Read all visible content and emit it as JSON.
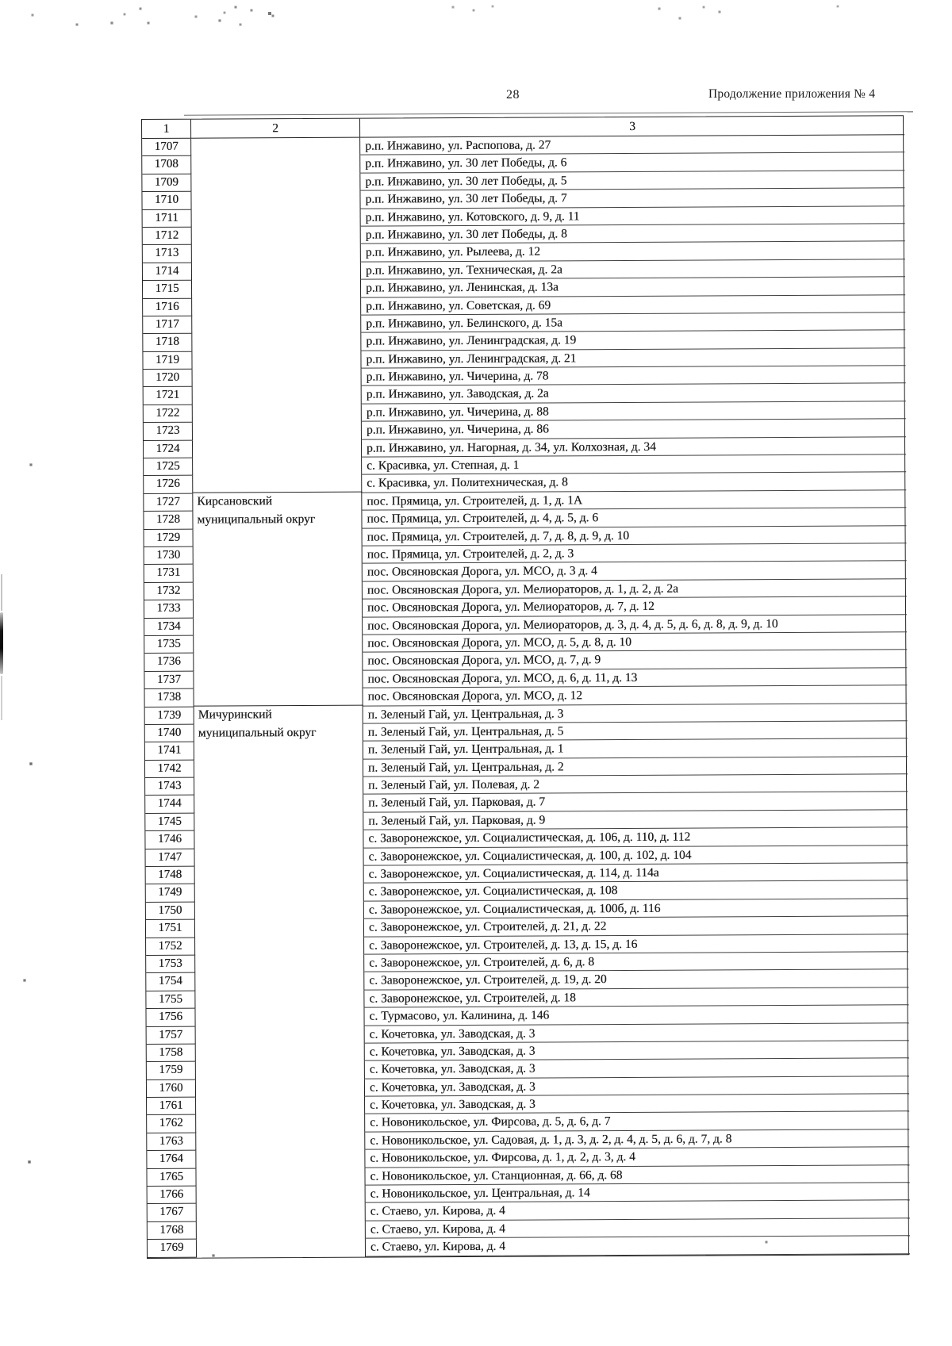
{
  "page": {
    "number": "28",
    "header_right": "Продолжение приложения № 4"
  },
  "table": {
    "columns": [
      "1",
      "2",
      "3"
    ],
    "rows": [
      {
        "num": "1707",
        "district": "",
        "address": "р.п. Инжавино, ул. Распопова, д. 27"
      },
      {
        "num": "1708",
        "district": "",
        "address": "р.п. Инжавино, ул. 30 лет Победы, д. 6"
      },
      {
        "num": "1709",
        "district": "",
        "address": "р.п. Инжавино, ул. 30 лет Победы, д. 5"
      },
      {
        "num": "1710",
        "district": "",
        "address": "р.п. Инжавино, ул. 30 лет Победы, д. 7"
      },
      {
        "num": "1711",
        "district": "",
        "address": "р.п. Инжавино, ул. Котовского, д. 9, д. 11"
      },
      {
        "num": "1712",
        "district": "",
        "address": "р.п. Инжавино, ул. 30 лет Победы, д. 8"
      },
      {
        "num": "1713",
        "district": "",
        "address": "р.п. Инжавино, ул. Рылеева, д. 12"
      },
      {
        "num": "1714",
        "district": "",
        "address": "р.п. Инжавино, ул. Техническая, д. 2а"
      },
      {
        "num": "1715",
        "district": "",
        "address": "р.п. Инжавино, ул. Ленинская, д. 13а"
      },
      {
        "num": "1716",
        "district": "",
        "address": "р.п. Инжавино, ул. Советская, д. 69"
      },
      {
        "num": "1717",
        "district": "",
        "address": "р.п. Инжавино, ул. Белинского, д. 15а"
      },
      {
        "num": "1718",
        "district": "",
        "address": "р.п. Инжавино, ул. Ленинградская, д. 19"
      },
      {
        "num": "1719",
        "district": "",
        "address": "р.п. Инжавино, ул. Ленинградская, д. 21"
      },
      {
        "num": "1720",
        "district": "",
        "address": "р.п. Инжавино, ул. Чичерина, д. 78"
      },
      {
        "num": "1721",
        "district": "",
        "address": "р.п. Инжавино, ул. Заводская, д. 2а"
      },
      {
        "num": "1722",
        "district": "",
        "address": "р.п. Инжавино, ул. Чичерина, д. 88"
      },
      {
        "num": "1723",
        "district": "",
        "address": "р.п. Инжавино, ул. Чичерина, д. 86"
      },
      {
        "num": "1724",
        "district": "",
        "address": "р.п. Инжавино, ул. Нагорная, д. 34, ул. Колхозная, д. 34"
      },
      {
        "num": "1725",
        "district": "",
        "address": "с. Красивка, ул. Степная, д. 1"
      },
      {
        "num": "1726",
        "district": "",
        "address": "с. Красивка, ул. Политехническая, д. 8"
      },
      {
        "num": "1727",
        "district": "Кирсановский",
        "address": "пос. Прямица, ул. Строителей, д. 1, д. 1А",
        "group_start": true
      },
      {
        "num": "1728",
        "district": "муниципальный округ",
        "address": "пос. Прямица, ул. Строителей, д. 4, д. 5, д. 6"
      },
      {
        "num": "1729",
        "district": "",
        "address": "пос. Прямица, ул. Строителей, д. 7, д. 8, д. 9, д. 10"
      },
      {
        "num": "1730",
        "district": "",
        "address": "пос. Прямица, ул. Строителей, д. 2, д. 3"
      },
      {
        "num": "1731",
        "district": "",
        "address": "пос. Овсяновская Дорога, ул. МСО, д. 3 д. 4"
      },
      {
        "num": "1732",
        "district": "",
        "address": "пос. Овсяновская Дорога, ул. Мелиораторов, д. 1, д. 2, д. 2а"
      },
      {
        "num": "1733",
        "district": "",
        "address": "пос. Овсяновская Дорога, ул. Мелиораторов, д. 7, д. 12"
      },
      {
        "num": "1734",
        "district": "",
        "address": "пос. Овсяновская Дорога, ул. Мелиораторов, д. 3, д. 4, д. 5, д. 6, д. 8, д. 9, д. 10"
      },
      {
        "num": "1735",
        "district": "",
        "address": "пос. Овсяновская Дорога, ул. МСО, д. 5, д. 8, д. 10"
      },
      {
        "num": "1736",
        "district": "",
        "address": "пос. Овсяновская Дорога, ул. МСО, д. 7, д. 9"
      },
      {
        "num": "1737",
        "district": "",
        "address": "пос. Овсяновская Дорога, ул. МСО, д. 6, д. 11, д. 13"
      },
      {
        "num": "1738",
        "district": "",
        "address": "пос. Овсяновская Дорога, ул. МСО, д. 12"
      },
      {
        "num": "1739",
        "district": "Мичуринский",
        "address": "п. Зеленый Гай, ул. Центральная, д. 3",
        "group_start": true
      },
      {
        "num": "1740",
        "district": "муниципальный округ",
        "address": "п. Зеленый Гай, ул. Центральная, д. 5"
      },
      {
        "num": "1741",
        "district": "",
        "address": "п. Зеленый Гай, ул. Центральная, д. 1"
      },
      {
        "num": "1742",
        "district": "",
        "address": "п. Зеленый Гай, ул. Центральная, д. 2"
      },
      {
        "num": "1743",
        "district": "",
        "address": "п. Зеленый Гай, ул. Полевая, д. 2"
      },
      {
        "num": "1744",
        "district": "",
        "address": "п. Зеленый Гай, ул. Парковая, д. 7"
      },
      {
        "num": "1745",
        "district": "",
        "address": "п. Зеленый Гай, ул. Парковая, д. 9"
      },
      {
        "num": "1746",
        "district": "",
        "address": "с. Заворонежское, ул. Социалистическая, д. 106, д. 110, д. 112"
      },
      {
        "num": "1747",
        "district": "",
        "address": "с. Заворонежское, ул. Социалистическая, д. 100, д. 102, д. 104"
      },
      {
        "num": "1748",
        "district": "",
        "address": "с. Заворонежское, ул. Социалистическая, д. 114, д. 114а"
      },
      {
        "num": "1749",
        "district": "",
        "address": "с. Заворонежское, ул. Социалистическая, д. 108"
      },
      {
        "num": "1750",
        "district": "",
        "address": "с. Заворонежское, ул. Социалистическая, д. 100б, д. 116"
      },
      {
        "num": "1751",
        "district": "",
        "address": "с. Заворонежское, ул. Строителей, д. 21, д. 22"
      },
      {
        "num": "1752",
        "district": "",
        "address": "с. Заворонежское, ул. Строителей, д. 13, д. 15, д. 16"
      },
      {
        "num": "1753",
        "district": "",
        "address": "с. Заворонежское, ул. Строителей, д. 6, д. 8"
      },
      {
        "num": "1754",
        "district": "",
        "address": "с. Заворонежское, ул. Строителей, д. 19, д. 20"
      },
      {
        "num": "1755",
        "district": "",
        "address": "с. Заворонежское, ул. Строителей, д. 18"
      },
      {
        "num": "1756",
        "district": "",
        "address": "с. Турмасово, ул. Калинина, д. 146"
      },
      {
        "num": "1757",
        "district": "",
        "address": "с. Кочетовка, ул. Заводская, д. 3"
      },
      {
        "num": "1758",
        "district": "",
        "address": "с. Кочетовка, ул. Заводская, д. 3"
      },
      {
        "num": "1759",
        "district": "",
        "address": "с. Кочетовка, ул. Заводская, д. 3"
      },
      {
        "num": "1760",
        "district": "",
        "address": "с. Кочетовка, ул. Заводская, д. 3"
      },
      {
        "num": "1761",
        "district": "",
        "address": "с. Кочетовка, ул. Заводская, д. 3"
      },
      {
        "num": "1762",
        "district": "",
        "address": "с. Новоникольское, ул. Фирсова, д. 5, д. 6, д. 7"
      },
      {
        "num": "1763",
        "district": "",
        "address": "с. Новоникольское, ул. Садовая, д. 1, д. 3, д. 2, д. 4, д. 5, д. 6, д. 7, д. 8"
      },
      {
        "num": "1764",
        "district": "",
        "address": "с. Новоникольское, ул. Фирсова, д. 1, д. 2, д. 3, д. 4"
      },
      {
        "num": "1765",
        "district": "",
        "address": "с. Новоникольское, ул. Станционная, д. 66, д. 68"
      },
      {
        "num": "1766",
        "district": "",
        "address": "с. Новоникольское, ул. Центральная, д. 14"
      },
      {
        "num": "1767",
        "district": "",
        "address": "с. Стаево, ул. Кирова, д. 4"
      },
      {
        "num": "1768",
        "district": "",
        "address": "с. Стаево, ул. Кирова, д. 4"
      },
      {
        "num": "1769",
        "district": "",
        "address": "с. Стаево, ул. Кирова, д. 4"
      }
    ]
  }
}
